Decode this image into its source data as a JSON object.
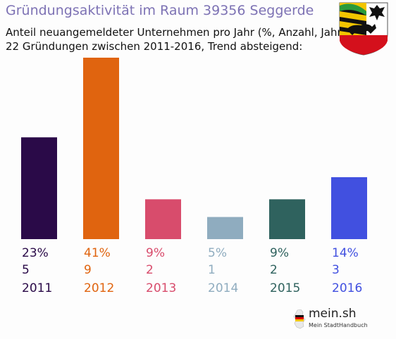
{
  "header": {
    "title": "Gründungsaktivität im Raum 39356 Seggerde",
    "subtitle_line1": "Anteil neuangemeldeter Unternehmen pro Jahr (%, Anzahl, Jahr)",
    "subtitle_line2": "22 Gründungen zwischen 2011-2016, Trend absteigend:"
  },
  "logo": {
    "name": "mein.sh",
    "tagline": "Mein StadtHandbuch",
    "icon": "germany-map-icon"
  },
  "crest": {
    "icon": "saxony-anhalt-coat-of-arms-icon"
  },
  "chart_data": {
    "type": "bar",
    "categories": [
      "2011",
      "2012",
      "2013",
      "2014",
      "2015",
      "2016"
    ],
    "values": [
      23,
      41,
      9,
      5,
      9,
      14
    ],
    "percent_labels": [
      "23%",
      "41%",
      "9%",
      "5%",
      "9%",
      "14%"
    ],
    "counts": [
      "5",
      "9",
      "2",
      "1",
      "2",
      "3"
    ],
    "colors": [
      "#2a0a48",
      "#e0640f",
      "#d84c6c",
      "#8facbf",
      "#2f625e",
      "#4150e0"
    ],
    "ylim": [
      0,
      41
    ],
    "grid": false
  }
}
